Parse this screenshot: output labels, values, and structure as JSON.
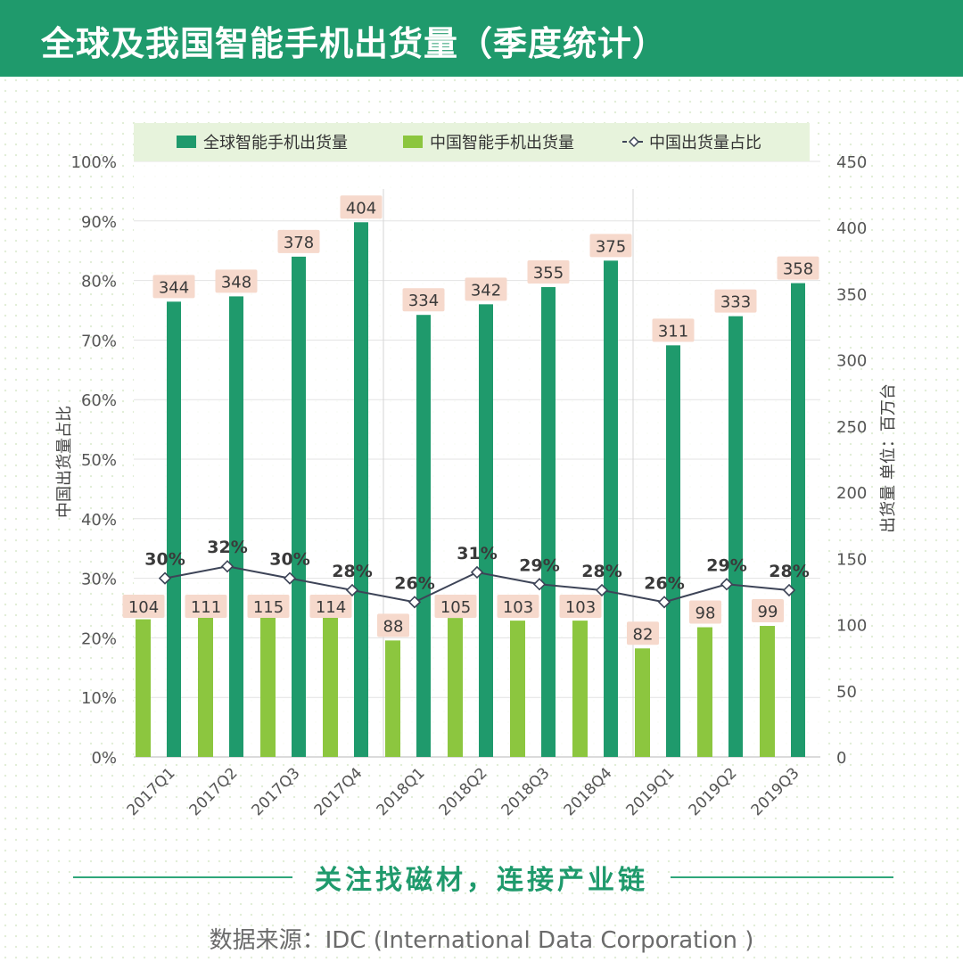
{
  "header": {
    "title": "全球及我国智能手机出货量（季度统计）"
  },
  "colors": {
    "header_bg": "#1f9a6c",
    "global_bar": "#1f9a6c",
    "china_bar": "#8cc63f",
    "ratio_line": "#3d4457",
    "label_bg": "#f6d9cc",
    "legend_bg": "#e7f3dc"
  },
  "chart_data": {
    "type": "bar",
    "categories": [
      "2017Q1",
      "2017Q2",
      "2017Q3",
      "2017Q4",
      "2018Q1",
      "2018Q2",
      "2018Q3",
      "2018Q4",
      "2019Q1",
      "2019Q2",
      "2019Q3"
    ],
    "series": [
      {
        "name": "全球智能手机出货量",
        "type": "bar",
        "axis": "right",
        "values": [
          344,
          348,
          378,
          404,
          334,
          342,
          355,
          375,
          311,
          333,
          358
        ]
      },
      {
        "name": "中国智能手机出货量",
        "type": "bar",
        "axis": "right",
        "values": [
          104,
          111,
          115,
          114,
          88,
          105,
          103,
          103,
          82,
          98,
          99
        ]
      },
      {
        "name": "中国出货量占比",
        "type": "line",
        "axis": "left",
        "values": [
          30,
          32,
          30,
          28,
          26,
          31,
          29,
          28,
          26,
          29,
          28
        ],
        "labels": [
          "30%",
          "32%",
          "30%",
          "28%",
          "26%",
          "31%",
          "29%",
          "28%",
          "26%",
          "29%",
          "28%"
        ]
      }
    ],
    "left_axis": {
      "label": "中国出货量占比",
      "ylim": [
        0,
        100
      ],
      "ticks": [
        "0%",
        "10%",
        "20%",
        "30%",
        "40%",
        "50%",
        "60%",
        "70%",
        "80%",
        "90%",
        "100%"
      ]
    },
    "right_axis": {
      "label": "出货量 单位：百万台",
      "ylim": [
        0,
        450
      ],
      "ticks": [
        "0",
        "50",
        "100",
        "150",
        "200",
        "250",
        "300",
        "350",
        "400",
        "450"
      ]
    },
    "legend": [
      "全球智能手机出货量",
      "中国智能手机出货量",
      "中国出货量占比"
    ],
    "legend_position": "top",
    "grid": true
  },
  "footer": {
    "slogan": "关注找磁材，连接产业链",
    "source": "数据来源：IDC (International Data Corporation )"
  }
}
